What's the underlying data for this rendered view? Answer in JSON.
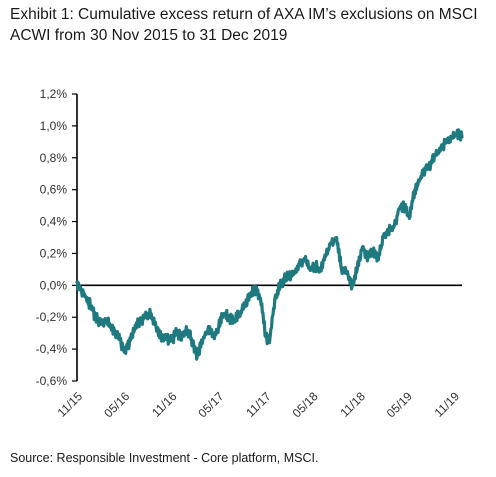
{
  "title": "Exhibit 1: Cumulative excess return of AXA IM’s exclusions on MSCI ACWI from 30 Nov 2015 to 31 Dec 2019",
  "source": "Source: Responsible Investment - Core platform, MSCI.",
  "chart_data": {
    "type": "line",
    "title": "Exhibit 1: Cumulative excess return of AXA IM’s exclusions on MSCI ACWI from 30 Nov 2015 to 31 Dec 2019",
    "xlabel": "",
    "ylabel": "",
    "ylim": [
      -0.6,
      1.2
    ],
    "y_ticks": [
      "1,2%",
      "1,0%",
      "0,8%",
      "0,6%",
      "0,4%",
      "0,2%",
      "0,0%",
      "-0,2%",
      "-0,4%",
      "-0,6%"
    ],
    "x_ticks": [
      "11/15",
      "05/16",
      "11/16",
      "05/17",
      "11/17",
      "05/18",
      "11/18",
      "05/19",
      "11/19"
    ],
    "grid": false,
    "legend": "none",
    "line_color": "#1f7a80",
    "series": [
      {
        "x": [
          "2015-11-30",
          "2015-12-15",
          "2016-01-05",
          "2016-01-20",
          "2016-02-10",
          "2016-03-01",
          "2016-03-20",
          "2016-04-10",
          "2016-05-01",
          "2016-05-15",
          "2016-06-01",
          "2016-06-20",
          "2016-07-10",
          "2016-07-30",
          "2016-08-20",
          "2016-09-10",
          "2016-10-01",
          "2016-10-20",
          "2016-11-10",
          "2016-12-01",
          "2016-12-20",
          "2017-01-10",
          "2017-02-01",
          "2017-02-20",
          "2017-03-10",
          "2017-04-01",
          "2017-04-20",
          "2017-05-10",
          "2017-06-01",
          "2017-06-20",
          "2017-07-10",
          "2017-08-01",
          "2017-08-20",
          "2017-09-10",
          "2017-10-01",
          "2017-10-20",
          "2017-11-10",
          "2017-11-30",
          "2017-12-15",
          "2018-01-05",
          "2018-01-25",
          "2018-02-10",
          "2018-03-01",
          "2018-03-20",
          "2018-04-10",
          "2018-05-01",
          "2018-05-20",
          "2018-06-10",
          "2018-07-01",
          "2018-07-20",
          "2018-08-10",
          "2018-09-01",
          "2018-09-20",
          "2018-10-10",
          "2018-11-01",
          "2018-11-20",
          "2018-12-10",
          "2019-01-01",
          "2019-01-20",
          "2019-02-10",
          "2019-03-01",
          "2019-03-20",
          "2019-04-10",
          "2019-05-01",
          "2019-05-20",
          "2019-06-10",
          "2019-07-01",
          "2019-07-20",
          "2019-08-10",
          "2019-09-01",
          "2019-09-20",
          "2019-10-10",
          "2019-11-01",
          "2019-11-20",
          "2019-12-10",
          "2019-12-31"
        ],
        "values": [
          0.02,
          -0.02,
          -0.08,
          -0.12,
          -0.2,
          -0.24,
          -0.22,
          -0.26,
          -0.3,
          -0.34,
          -0.42,
          -0.36,
          -0.28,
          -0.22,
          -0.2,
          -0.18,
          -0.26,
          -0.32,
          -0.34,
          -0.34,
          -0.3,
          -0.32,
          -0.28,
          -0.36,
          -0.44,
          -0.34,
          -0.28,
          -0.32,
          -0.26,
          -0.18,
          -0.2,
          -0.22,
          -0.18,
          -0.12,
          -0.06,
          -0.02,
          -0.08,
          -0.32,
          -0.36,
          -0.08,
          0.0,
          0.04,
          0.06,
          0.08,
          0.14,
          0.16,
          0.1,
          0.12,
          0.1,
          0.18,
          0.26,
          0.3,
          0.1,
          0.08,
          0.0,
          0.1,
          0.24,
          0.18,
          0.22,
          0.16,
          0.3,
          0.34,
          0.36,
          0.48,
          0.5,
          0.42,
          0.6,
          0.66,
          0.72,
          0.76,
          0.82,
          0.86,
          0.9,
          0.92,
          0.95,
          0.93
        ]
      }
    ]
  }
}
